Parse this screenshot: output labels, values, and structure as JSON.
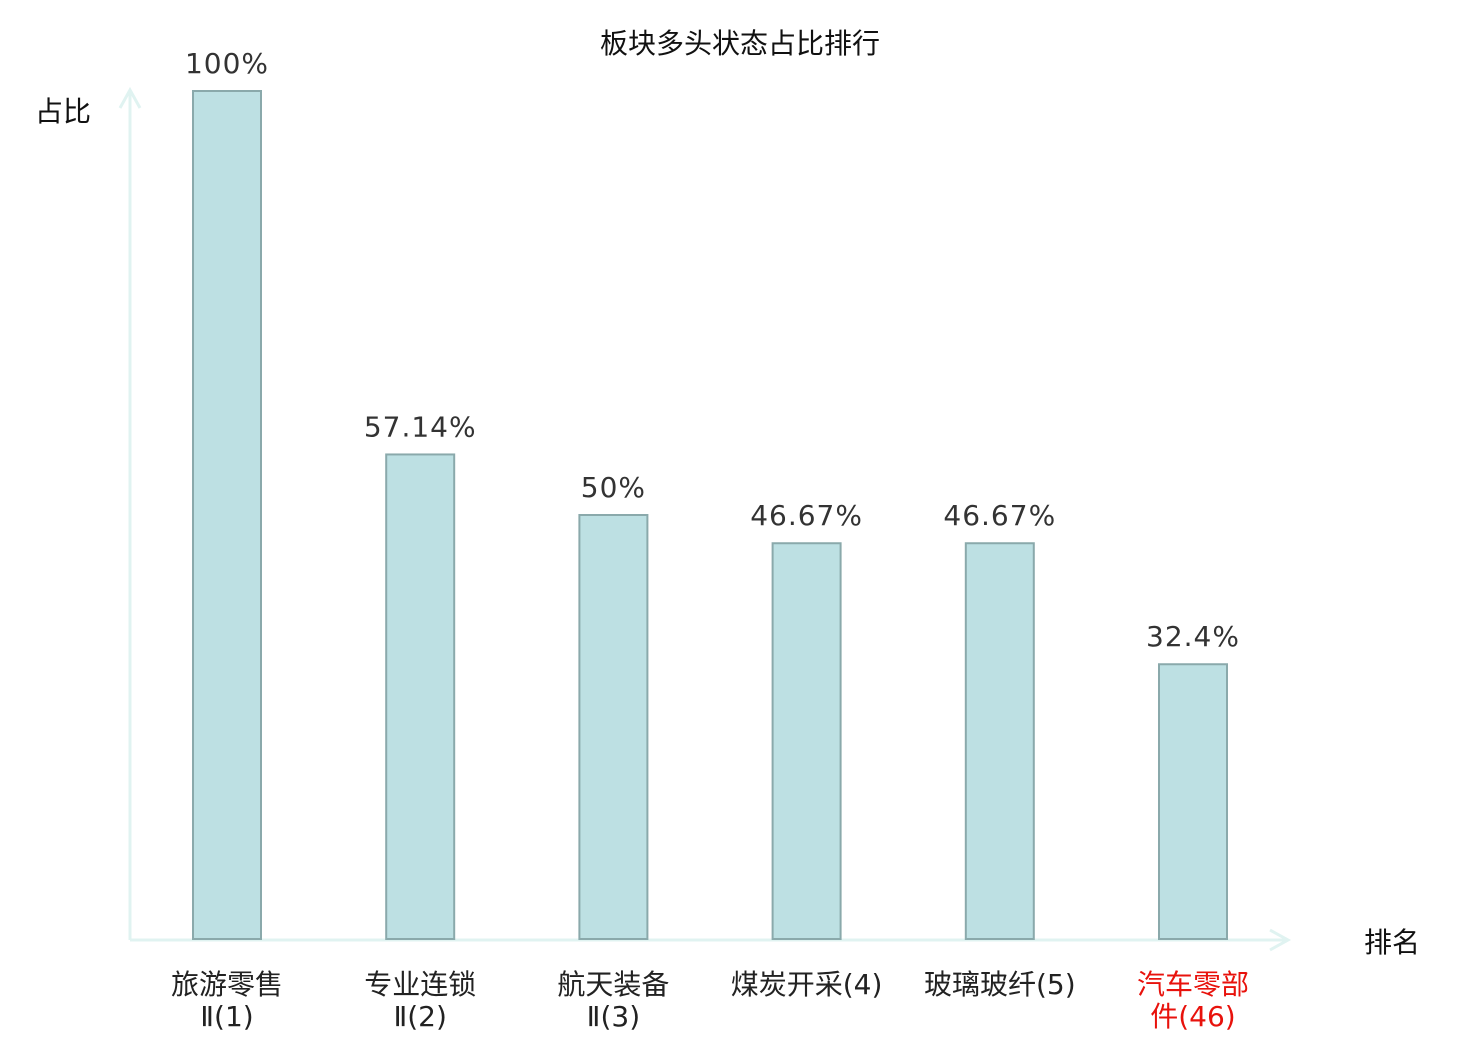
{
  "chart_data": {
    "type": "bar",
    "title": "板块多头状态占比排行",
    "xlabel": "排名",
    "ylabel": "占比",
    "ylim": [
      0,
      100
    ],
    "grid": false,
    "categories": [
      [
        "旅游零售",
        "Ⅱ(1)"
      ],
      [
        "专业连锁",
        "Ⅱ(2)"
      ],
      [
        "航天装备",
        "Ⅱ(3)"
      ],
      [
        "煤炭开采(4)"
      ],
      [
        "玻璃玻纤(5)"
      ],
      [
        "汽车零部",
        "件(46)"
      ]
    ],
    "values": [
      100,
      57.14,
      50,
      46.67,
      46.67,
      32.4
    ],
    "data_labels": [
      "100%",
      "57.14%",
      "50%",
      "46.67%",
      "46.67%",
      "32.4%"
    ],
    "highlight_index": 5,
    "colors": {
      "bar_fill": "#bde0e3",
      "bar_stroke": "#8aa9ab",
      "axis": "#e0f3f1",
      "highlight_label": "#e8120c",
      "text": "#222222"
    }
  }
}
